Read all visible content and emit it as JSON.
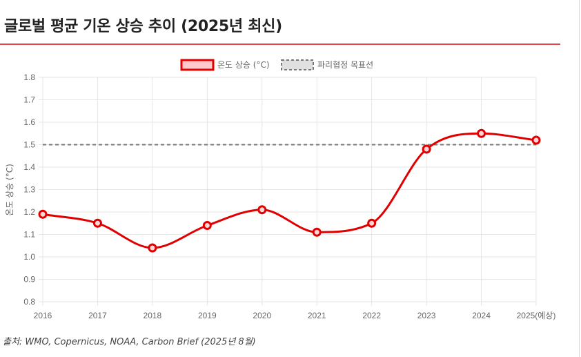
{
  "header": {
    "title": "글로벌 평균 기온 상승 추이 (2025년 최신)"
  },
  "colors": {
    "accent": "#e0474a",
    "series_line": "#e00000",
    "series_fill": "#ffc8cc",
    "target_line": "#777777",
    "grid": "#e6e6e6"
  },
  "chart_data": {
    "type": "line",
    "categories": [
      "2016",
      "2017",
      "2018",
      "2019",
      "2020",
      "2021",
      "2022",
      "2023",
      "2024",
      "2025(예상)"
    ],
    "series": [
      {
        "name": "온도 상승 (°C)",
        "values": [
          1.19,
          1.15,
          1.04,
          1.14,
          1.21,
          1.11,
          1.15,
          1.48,
          1.55,
          1.52
        ],
        "color": "#e00000",
        "style": "solid",
        "markers": "hollow-circle"
      },
      {
        "name": "파리협정 목표선",
        "values": [
          1.5,
          1.5,
          1.5,
          1.5,
          1.5,
          1.5,
          1.5,
          1.5,
          1.5,
          1.5
        ],
        "color": "#777777",
        "style": "dashed"
      }
    ],
    "xlabel": "",
    "ylabel": "온도 상승 (°C)",
    "ylim": [
      0.8,
      1.8
    ],
    "yticks": [
      "0.8",
      "0.9",
      "1.0",
      "1.1",
      "1.2",
      "1.3",
      "1.4",
      "1.5",
      "1.6",
      "1.7",
      "1.8"
    ],
    "grid": true,
    "legend": "top-center"
  },
  "footer": {
    "source": "출처: WMO, Copernicus, NOAA, Carbon Brief (2025년 8월)"
  }
}
